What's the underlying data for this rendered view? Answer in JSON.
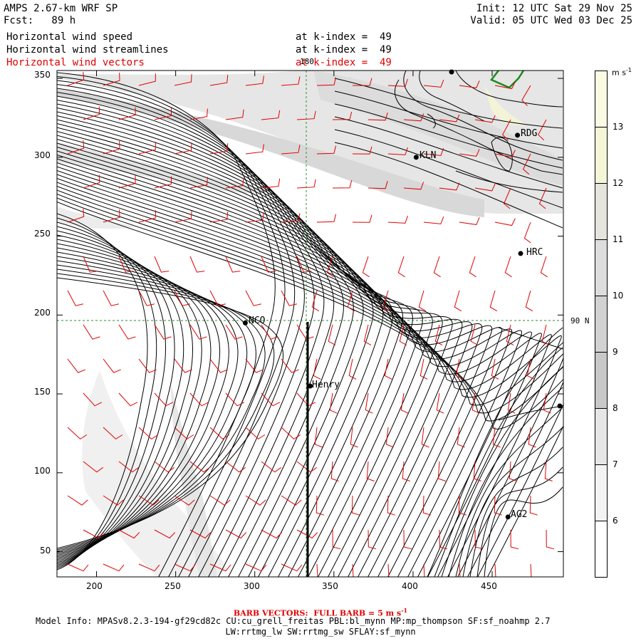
{
  "header": {
    "model": "AMPS 2.67-km WRF SP",
    "forecast": "Fcst:   89 h",
    "init": "Init: 12 UTC Sat 29 Nov 25",
    "valid": "Valid: 05 UTC Wed 03 Dec 25",
    "fields": [
      {
        "name": "Horizontal wind speed",
        "level": "at k-index =  49",
        "color": "#000000"
      },
      {
        "name": "Horizontal wind streamlines",
        "level": "at k-index =  49",
        "color": "#000000"
      },
      {
        "name": "Horizontal wind vectors",
        "level": "at k-index =  49",
        "color": "#e00000"
      }
    ]
  },
  "axes": {
    "x_ticks": [
      "200",
      "250",
      "300",
      "350",
      "400",
      "450"
    ],
    "y_ticks": [
      "350",
      "300",
      "250",
      "200",
      "150",
      "100",
      "50"
    ],
    "xlim": [
      175,
      495
    ],
    "ylim": [
      34,
      355
    ]
  },
  "grid_labels": {
    "meridian": "180",
    "latitude": "90 N"
  },
  "stations": [
    {
      "name": "KLN",
      "x": 402,
      "y": 300
    },
    {
      "name": "RDG",
      "x": 466,
      "y": 314
    },
    {
      "name": "HRC",
      "x": 468,
      "y": 239
    },
    {
      "name": "NCO",
      "x": 294,
      "y": 195
    },
    {
      "name": "Henry",
      "x": 335,
      "y": 155
    },
    {
      "name": "AG2",
      "x": 460,
      "y": 72
    }
  ],
  "colorbar": {
    "unit": "m s",
    "unit_exp": "-1",
    "levels": [
      "13",
      "12",
      "11",
      "10",
      "9",
      "8",
      "7",
      "6"
    ],
    "colors": [
      "#fbfbe4",
      "#f5f5d8",
      "#e5e5dd",
      "#dddddd",
      "#d2d2d2",
      "#c8c8c8",
      "#e6e6e6",
      "#f3f3f3",
      "#ffffff"
    ]
  },
  "footer": {
    "barb": "BARB VECTORS:  FULL BARB = 5 m s",
    "barb_exp": "-1",
    "model_info": "Model Info: MPASv8.2.3-194-gf29cd82c CU:cu_grell_freitas PBL:bl_mynn MP:mp_thompson SF:sf_noahmp 2.7",
    "model_info2": "LW:rrtmg_lw SW:rrtmg_sw SFLAY:sf_mynn"
  }
}
